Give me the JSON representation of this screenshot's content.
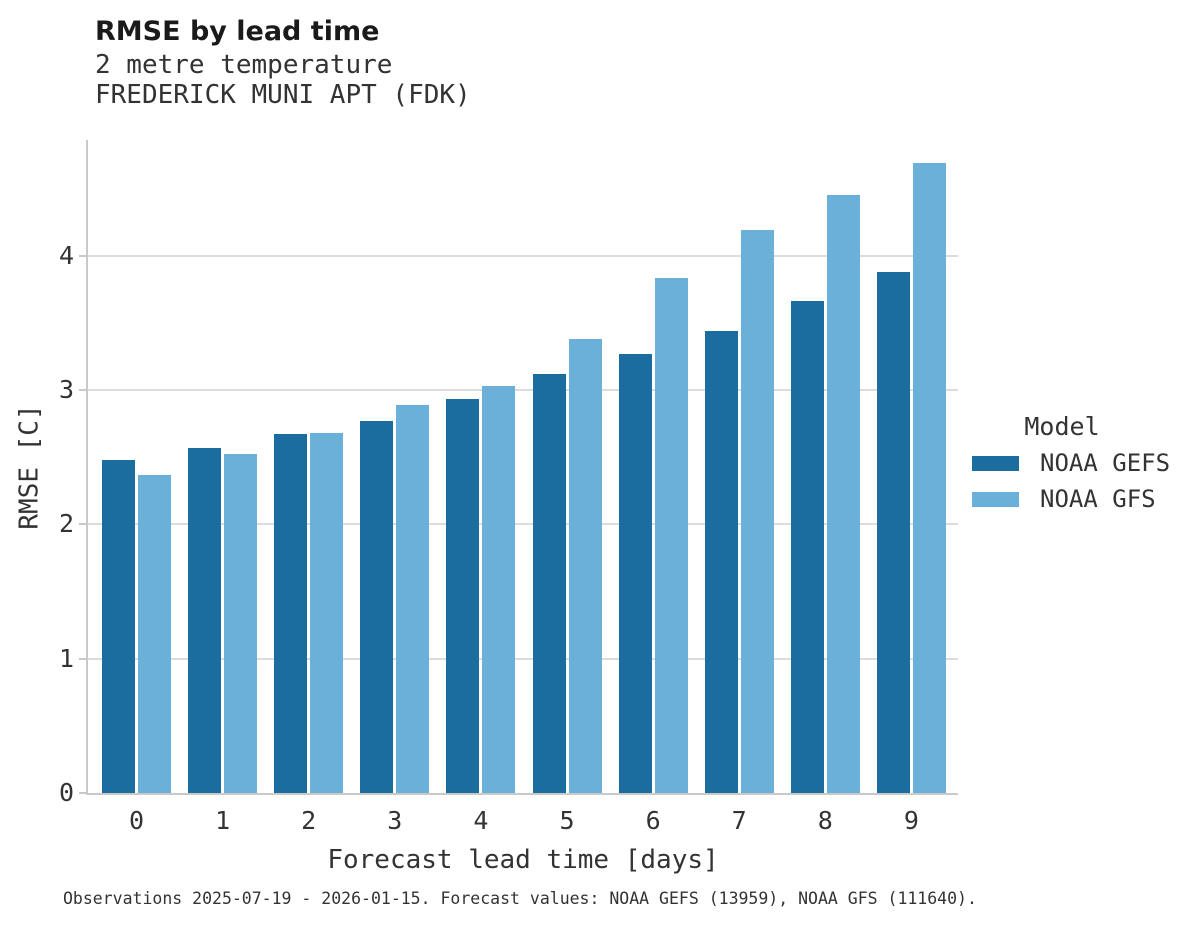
{
  "header": {
    "title": "RMSE by lead time",
    "subtitle1": "2 metre temperature",
    "subtitle2": "FREDERICK MUNI APT (FDK)"
  },
  "chart_data": {
    "type": "bar",
    "categories": [
      "0",
      "1",
      "2",
      "3",
      "4",
      "5",
      "6",
      "7",
      "8",
      "9"
    ],
    "series": [
      {
        "name": "NOAA GEFS",
        "color": "#1A6D9E",
        "values": [
          2.48,
          2.57,
          2.67,
          2.77,
          2.93,
          3.12,
          3.27,
          3.44,
          3.66,
          3.88
        ]
      },
      {
        "name": "NOAA GFS",
        "color": "#6BB0D9",
        "values": [
          2.37,
          2.52,
          2.68,
          2.89,
          3.03,
          3.38,
          3.83,
          4.19,
          4.45,
          4.69
        ]
      }
    ],
    "title": "RMSE by lead time",
    "xlabel": "Forecast lead time [days]",
    "ylabel": "RMSE [C]",
    "ylim": [
      0,
      4.86
    ],
    "yticks": [
      0,
      1,
      2,
      3,
      4
    ],
    "grid": true,
    "legend_title": "Model",
    "legend_position": "right"
  },
  "colors": {
    "axis": "#c9c9c9",
    "gridline": "#dcdcdc",
    "text": "#333333"
  },
  "caption": "Observations 2025-07-19 - 2026-01-15. Forecast values: NOAA GEFS (13959), NOAA GFS (111640)."
}
